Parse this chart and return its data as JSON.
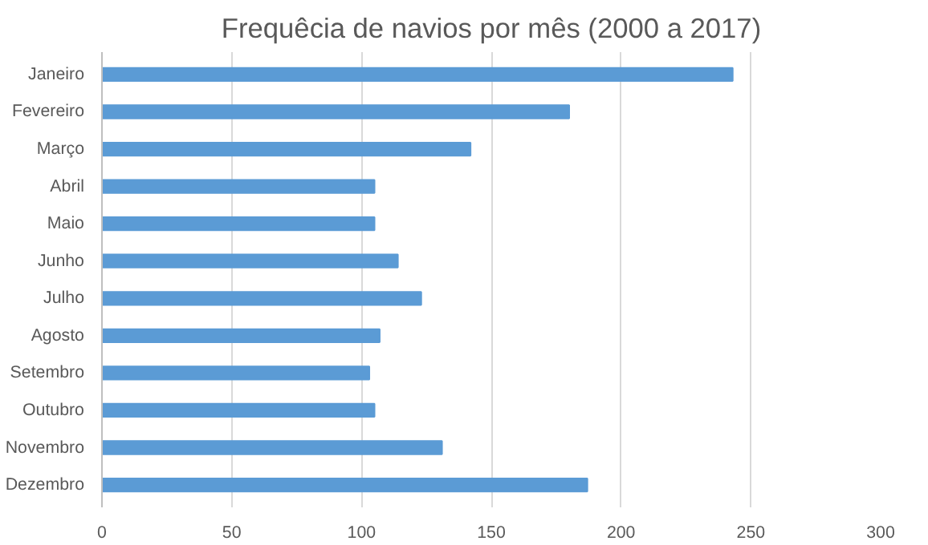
{
  "chart_data": {
    "type": "bar",
    "orientation": "horizontal",
    "title": "Frequêcia de navios por mês (2000 a 2017)",
    "categories": [
      "Janeiro",
      "Fevereiro",
      "Março",
      "Abril",
      "Maio",
      "Junho",
      "Julho",
      "Agosto",
      "Setembro",
      "Outubro",
      "Novembro",
      "Dezembro"
    ],
    "values": [
      243,
      180,
      142,
      105,
      105,
      114,
      123,
      107,
      103,
      105,
      131,
      187
    ],
    "color": "#5b9bd5",
    "xlim": [
      0,
      300
    ],
    "xticks": [
      0,
      50,
      100,
      150,
      200,
      250,
      300
    ],
    "grid": "x"
  }
}
